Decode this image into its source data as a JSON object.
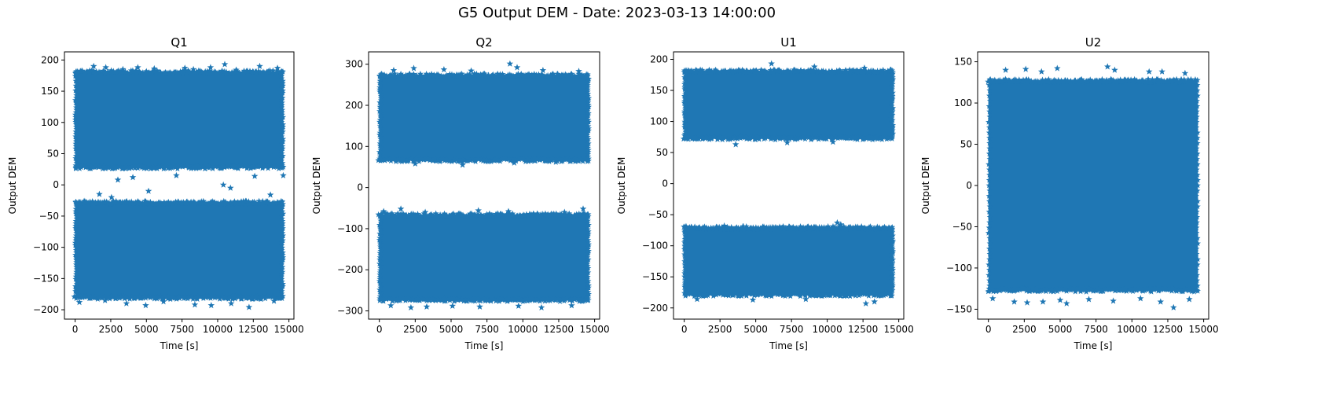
{
  "figure": {
    "suptitle": "G5 Output DEM - Date: 2023-03-13 14:00:00",
    "marker_color": "#1f77b4"
  },
  "chart_data": [
    {
      "type": "scatter",
      "title": "Q1",
      "xlabel": "Time [s]",
      "ylabel": "Output DEM",
      "xlim": [
        -750,
        15350
      ],
      "ylim": [
        -215,
        213
      ],
      "xticks": [
        0,
        2500,
        5000,
        7500,
        10000,
        12500,
        15000
      ],
      "yticks": [
        -200,
        -150,
        -100,
        -50,
        0,
        50,
        100,
        150,
        200
      ],
      "marker": "star",
      "series": [
        {
          "x": [
            0,
            14600
          ],
          "bands": [
            [
              27,
              182
            ],
            [
              -182,
              -27
            ]
          ]
        },
        {
          "x": [
            1300,
            2150,
            3350,
            4400,
            5550,
            7700,
            8300,
            9500,
            10500,
            11300,
            12950,
            14200
          ],
          "y": [
            190,
            188,
            185,
            188,
            186,
            187,
            185,
            188,
            193,
            184,
            190,
            187
          ]
        },
        {
          "x": [
            300,
            2100,
            3600,
            4950,
            6200,
            8400,
            9550,
            10950,
            12200,
            13950
          ],
          "y": [
            -188,
            -185,
            -190,
            -193,
            -187,
            -192,
            -193,
            -190,
            -196,
            -186
          ]
        },
        {
          "x": [
            1700,
            2550,
            3000,
            4050,
            5150,
            7100,
            10400,
            10900,
            12600,
            13700,
            14600
          ],
          "y": [
            -15,
            -20,
            8,
            12,
            -10,
            15,
            0,
            -5,
            14,
            -16,
            15
          ]
        }
      ]
    },
    {
      "type": "scatter",
      "title": "Q2",
      "xlabel": "Time [s]",
      "ylabel": "Output DEM",
      "xlim": [
        -750,
        15350
      ],
      "ylim": [
        -320,
        330
      ],
      "xticks": [
        0,
        2500,
        5000,
        7500,
        10000,
        12500,
        15000
      ],
      "yticks": [
        -300,
        -200,
        -100,
        0,
        100,
        200,
        300
      ],
      "marker": "star",
      "series": [
        {
          "x": [
            0,
            14600
          ],
          "bands": [
            [
              65,
              275
            ],
            [
              -275,
              -65
            ]
          ]
        },
        {
          "x": [
            1000,
            2400,
            4500,
            6400,
            9100,
            9600,
            11400,
            13900
          ],
          "y": [
            285,
            290,
            287,
            284,
            301,
            292,
            285,
            283
          ]
        },
        {
          "x": [
            800,
            2200,
            3300,
            5100,
            7000,
            9700,
            11300,
            13400
          ],
          "y": [
            -287,
            -292,
            -290,
            -288,
            -290,
            -288,
            -292,
            -287
          ]
        },
        {
          "x": [
            300,
            1500,
            3200,
            6900,
            9000,
            12900,
            14200
          ],
          "y": [
            -58,
            -52,
            -60,
            -56,
            -58,
            -60,
            -52
          ]
        },
        {
          "x": [
            2500,
            5800,
            9400,
            12300
          ],
          "y": [
            58,
            55,
            60,
            62
          ]
        }
      ]
    },
    {
      "type": "scatter",
      "title": "U1",
      "xlabel": "Time [s]",
      "ylabel": "Output DEM",
      "xlim": [
        -750,
        15350
      ],
      "ylim": [
        -218,
        212
      ],
      "xticks": [
        0,
        2500,
        5000,
        7500,
        10000,
        12500,
        15000
      ],
      "yticks": [
        -200,
        -150,
        -100,
        -50,
        0,
        50,
        100,
        150,
        200
      ],
      "marker": "star",
      "series": [
        {
          "x": [
            0,
            14600
          ],
          "bands": [
            [
              72,
              182
            ],
            [
              -180,
              -70
            ]
          ]
        },
        {
          "x": [
            6100,
            9100,
            12600
          ],
          "y": [
            193,
            188,
            186
          ]
        },
        {
          "x": [
            3600,
            7200,
            10400
          ],
          "y": [
            63,
            66,
            67
          ]
        },
        {
          "x": [
            10700,
            10950,
            2800
          ],
          "y": [
            -63,
            -66,
            -68
          ]
        },
        {
          "x": [
            12700,
            13300,
            900,
            4800,
            8500
          ],
          "y": [
            -193,
            -190,
            -186,
            -187,
            -186
          ]
        }
      ]
    },
    {
      "type": "scatter",
      "title": "U2",
      "xlabel": "Time [s]",
      "ylabel": "Output DEM",
      "xlim": [
        -750,
        15350
      ],
      "ylim": [
        -162,
        162
      ],
      "xticks": [
        0,
        2500,
        5000,
        7500,
        10000,
        12500,
        15000
      ],
      "yticks": [
        -150,
        -100,
        -50,
        0,
        50,
        100,
        150
      ],
      "marker": "star",
      "series": [
        {
          "x": [
            0,
            14600
          ],
          "bands": [
            [
              -128,
              128
            ]
          ]
        },
        {
          "x": [
            1200,
            2600,
            3700,
            4800,
            8300,
            8800,
            11200,
            12100,
            13700
          ],
          "y": [
            140,
            141,
            138,
            142,
            144,
            140,
            138,
            138,
            136
          ]
        },
        {
          "x": [
            300,
            1800,
            2700,
            3800,
            5000,
            5450,
            7000,
            8700,
            10600,
            12000,
            12900,
            14000
          ],
          "y": [
            -137,
            -141,
            -142,
            -141,
            -139,
            -143,
            -138,
            -140,
            -137,
            -141,
            -148,
            -138
          ]
        }
      ]
    }
  ]
}
